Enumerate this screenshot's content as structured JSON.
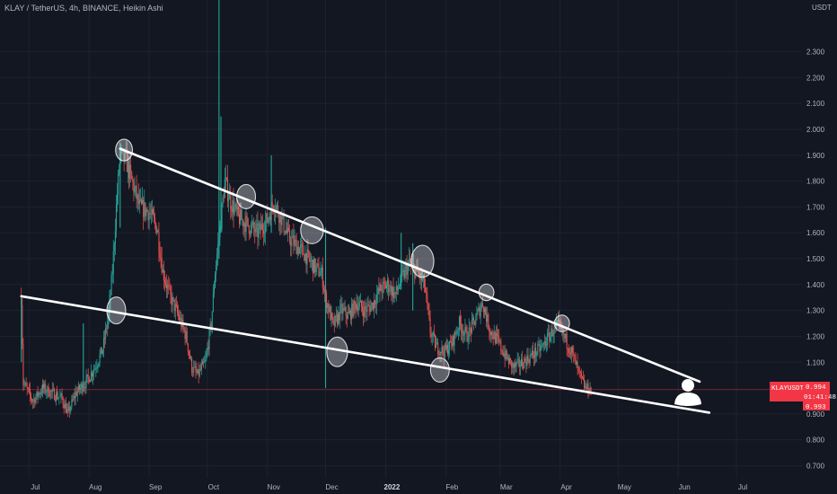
{
  "chart_data": {
    "type": "candlestick",
    "title": "KLAY / TetherUS, 4h, BINANCE, Heikin Ashi",
    "currency": "USDT",
    "symbol": "KLAYUSDT",
    "last_price_tag": {
      "symbol": "KLAYUSDT",
      "price": "0.994",
      "countdown": "01:41:48",
      "second_price": "0.993"
    },
    "y_ticks": [
      "2.300",
      "2.200",
      "2.100",
      "2.000",
      "1.900",
      "1.800",
      "1.700",
      "1.600",
      "1.500",
      "1.400",
      "1.300",
      "1.200",
      "1.100",
      "0.900",
      "0.800",
      "0.700"
    ],
    "y_tick_values": [
      2.3,
      2.2,
      2.1,
      2.0,
      1.9,
      1.8,
      1.7,
      1.6,
      1.5,
      1.4,
      1.3,
      1.2,
      1.1,
      0.9,
      0.8,
      0.7
    ],
    "ylim": [
      0.66,
      2.5
    ],
    "x_ticks": [
      {
        "label": "Jul",
        "date": "2021-07-01",
        "bold": false
      },
      {
        "label": "Aug",
        "date": "2021-08-01",
        "bold": false
      },
      {
        "label": "Sep",
        "date": "2021-09-01",
        "bold": false
      },
      {
        "label": "Oct",
        "date": "2021-10-01",
        "bold": false
      },
      {
        "label": "Nov",
        "date": "2021-11-01",
        "bold": false
      },
      {
        "label": "Dec",
        "date": "2021-12-01",
        "bold": false
      },
      {
        "label": "2022",
        "date": "2022-01-01",
        "bold": true
      },
      {
        "label": "Feb",
        "date": "2022-02-01",
        "bold": false
      },
      {
        "label": "Mar",
        "date": "2022-03-01",
        "bold": false
      },
      {
        "label": "Apr",
        "date": "2022-04-01",
        "bold": false
      },
      {
        "label": "May",
        "date": "2022-05-01",
        "bold": false
      },
      {
        "label": "Jun",
        "date": "2022-06-01",
        "bold": false
      },
      {
        "label": "Jul",
        "date": "2022-07-01",
        "bold": false
      }
    ],
    "xlim": [
      "2021-06-16",
      "2022-07-28"
    ],
    "price_path": [
      [
        "2021-06-27",
        1.35
      ],
      [
        "2021-06-28",
        1.02
      ],
      [
        "2021-07-03",
        0.95
      ],
      [
        "2021-07-08",
        1.0
      ],
      [
        "2021-07-13",
        0.98
      ],
      [
        "2021-07-18",
        0.96
      ],
      [
        "2021-07-21",
        0.9
      ],
      [
        "2021-07-25",
        0.98
      ],
      [
        "2021-07-30",
        1.02
      ],
      [
        "2021-08-04",
        1.08
      ],
      [
        "2021-08-08",
        1.15
      ],
      [
        "2021-08-11",
        1.28
      ],
      [
        "2021-08-13",
        1.45
      ],
      [
        "2021-08-15",
        1.7
      ],
      [
        "2021-08-17",
        1.9
      ],
      [
        "2021-08-20",
        1.88
      ],
      [
        "2021-08-23",
        1.8
      ],
      [
        "2021-08-27",
        1.7
      ],
      [
        "2021-09-01",
        1.68
      ],
      [
        "2021-09-05",
        1.62
      ],
      [
        "2021-09-08",
        1.45
      ],
      [
        "2021-09-12",
        1.35
      ],
      [
        "2021-09-16",
        1.28
      ],
      [
        "2021-09-20",
        1.2
      ],
      [
        "2021-09-23",
        1.08
      ],
      [
        "2021-09-26",
        1.05
      ],
      [
        "2021-09-30",
        1.1
      ],
      [
        "2021-10-03",
        1.25
      ],
      [
        "2021-10-05",
        1.45
      ],
      [
        "2021-10-08",
        1.65
      ],
      [
        "2021-10-10",
        1.8
      ],
      [
        "2021-10-13",
        1.72
      ],
      [
        "2021-10-17",
        1.66
      ],
      [
        "2021-10-22",
        1.63
      ],
      [
        "2021-10-27",
        1.6
      ],
      [
        "2021-11-01",
        1.65
      ],
      [
        "2021-11-04",
        1.72
      ],
      [
        "2021-11-08",
        1.66
      ],
      [
        "2021-11-12",
        1.58
      ],
      [
        "2021-11-16",
        1.55
      ],
      [
        "2021-11-20",
        1.52
      ],
      [
        "2021-11-25",
        1.47
      ],
      [
        "2021-11-29",
        1.44
      ],
      [
        "2021-12-01",
        1.35
      ],
      [
        "2021-12-05",
        1.24
      ],
      [
        "2021-12-09",
        1.3
      ],
      [
        "2021-12-13",
        1.28
      ],
      [
        "2021-12-17",
        1.33
      ],
      [
        "2021-12-21",
        1.3
      ],
      [
        "2021-12-25",
        1.32
      ],
      [
        "2021-12-29",
        1.38
      ],
      [
        "2022-01-02",
        1.4
      ],
      [
        "2022-01-06",
        1.36
      ],
      [
        "2022-01-09",
        1.42
      ],
      [
        "2022-01-13",
        1.48
      ],
      [
        "2022-01-17",
        1.45
      ],
      [
        "2022-01-21",
        1.4
      ],
      [
        "2022-01-24",
        1.22
      ],
      [
        "2022-01-27",
        1.16
      ],
      [
        "2022-01-31",
        1.14
      ],
      [
        "2022-02-04",
        1.17
      ],
      [
        "2022-02-08",
        1.25
      ],
      [
        "2022-02-12",
        1.2
      ],
      [
        "2022-02-16",
        1.26
      ],
      [
        "2022-02-20",
        1.33
      ],
      [
        "2022-02-24",
        1.22
      ],
      [
        "2022-02-28",
        1.18
      ],
      [
        "2022-03-04",
        1.12
      ],
      [
        "2022-03-08",
        1.08
      ],
      [
        "2022-03-13",
        1.1
      ],
      [
        "2022-03-18",
        1.13
      ],
      [
        "2022-03-23",
        1.16
      ],
      [
        "2022-03-28",
        1.22
      ],
      [
        "2022-03-31",
        1.24
      ],
      [
        "2022-04-03",
        1.2
      ],
      [
        "2022-04-07",
        1.14
      ],
      [
        "2022-04-11",
        1.05
      ],
      [
        "2022-04-14",
        1.0
      ],
      [
        "2022-04-17",
        0.994
      ]
    ],
    "spikes": [
      {
        "date": "2021-06-27",
        "high": 1.35,
        "low": 1.1
      },
      {
        "date": "2021-07-29",
        "high": 1.25,
        "low": 1.0
      },
      {
        "date": "2021-08-17",
        "high": 1.95,
        "low": 1.62
      },
      {
        "date": "2021-10-07",
        "high": 2.5,
        "low": 1.5
      },
      {
        "date": "2021-10-08",
        "high": 2.05,
        "low": 1.6
      },
      {
        "date": "2021-11-03",
        "high": 1.9,
        "low": 1.6
      },
      {
        "date": "2021-12-01",
        "high": 1.62,
        "low": 1.0
      },
      {
        "date": "2022-01-09",
        "high": 1.6,
        "low": 1.38
      },
      {
        "date": "2022-01-15",
        "high": 1.56,
        "low": 1.3
      }
    ],
    "trendlines": [
      {
        "name": "upper",
        "from": [
          "2021-08-17",
          1.925
        ],
        "to": [
          "2022-06-12",
          1.025
        ]
      },
      {
        "name": "lower",
        "from": [
          "2021-06-27",
          1.355
        ],
        "to": [
          "2022-06-17",
          0.905
        ]
      }
    ],
    "highlight_ellipses": [
      {
        "date": "2021-08-19",
        "price": 1.92,
        "w_days": 5,
        "h_price": 0.07
      },
      {
        "date": "2021-08-15",
        "price": 1.3,
        "w_days": 6,
        "h_price": 0.09
      },
      {
        "date": "2021-10-21",
        "price": 1.74,
        "w_days": 6,
        "h_price": 0.08
      },
      {
        "date": "2021-11-24",
        "price": 1.61,
        "w_days": 8,
        "h_price": 0.09
      },
      {
        "date": "2021-12-07",
        "price": 1.14,
        "w_days": 7,
        "h_price": 0.1
      },
      {
        "date": "2022-01-20",
        "price": 1.49,
        "w_days": 8,
        "h_price": 0.11
      },
      {
        "date": "2022-01-29",
        "price": 1.07,
        "w_days": 6,
        "h_price": 0.08
      },
      {
        "date": "2022-02-22",
        "price": 1.37,
        "w_days": 4,
        "h_price": 0.05
      },
      {
        "date": "2022-04-02",
        "price": 1.25,
        "w_days": 4,
        "h_price": 0.05
      }
    ],
    "colors": {
      "background": "#131722",
      "up": "#26a69a",
      "down": "#ef5350",
      "grid": "#1e2230",
      "text": "#b2b5be",
      "trendline": "#ffffff",
      "price_tag": "#f23645",
      "price_line": "#f23645"
    },
    "grid": true
  },
  "icons": {
    "user": "user-avatar-icon"
  }
}
